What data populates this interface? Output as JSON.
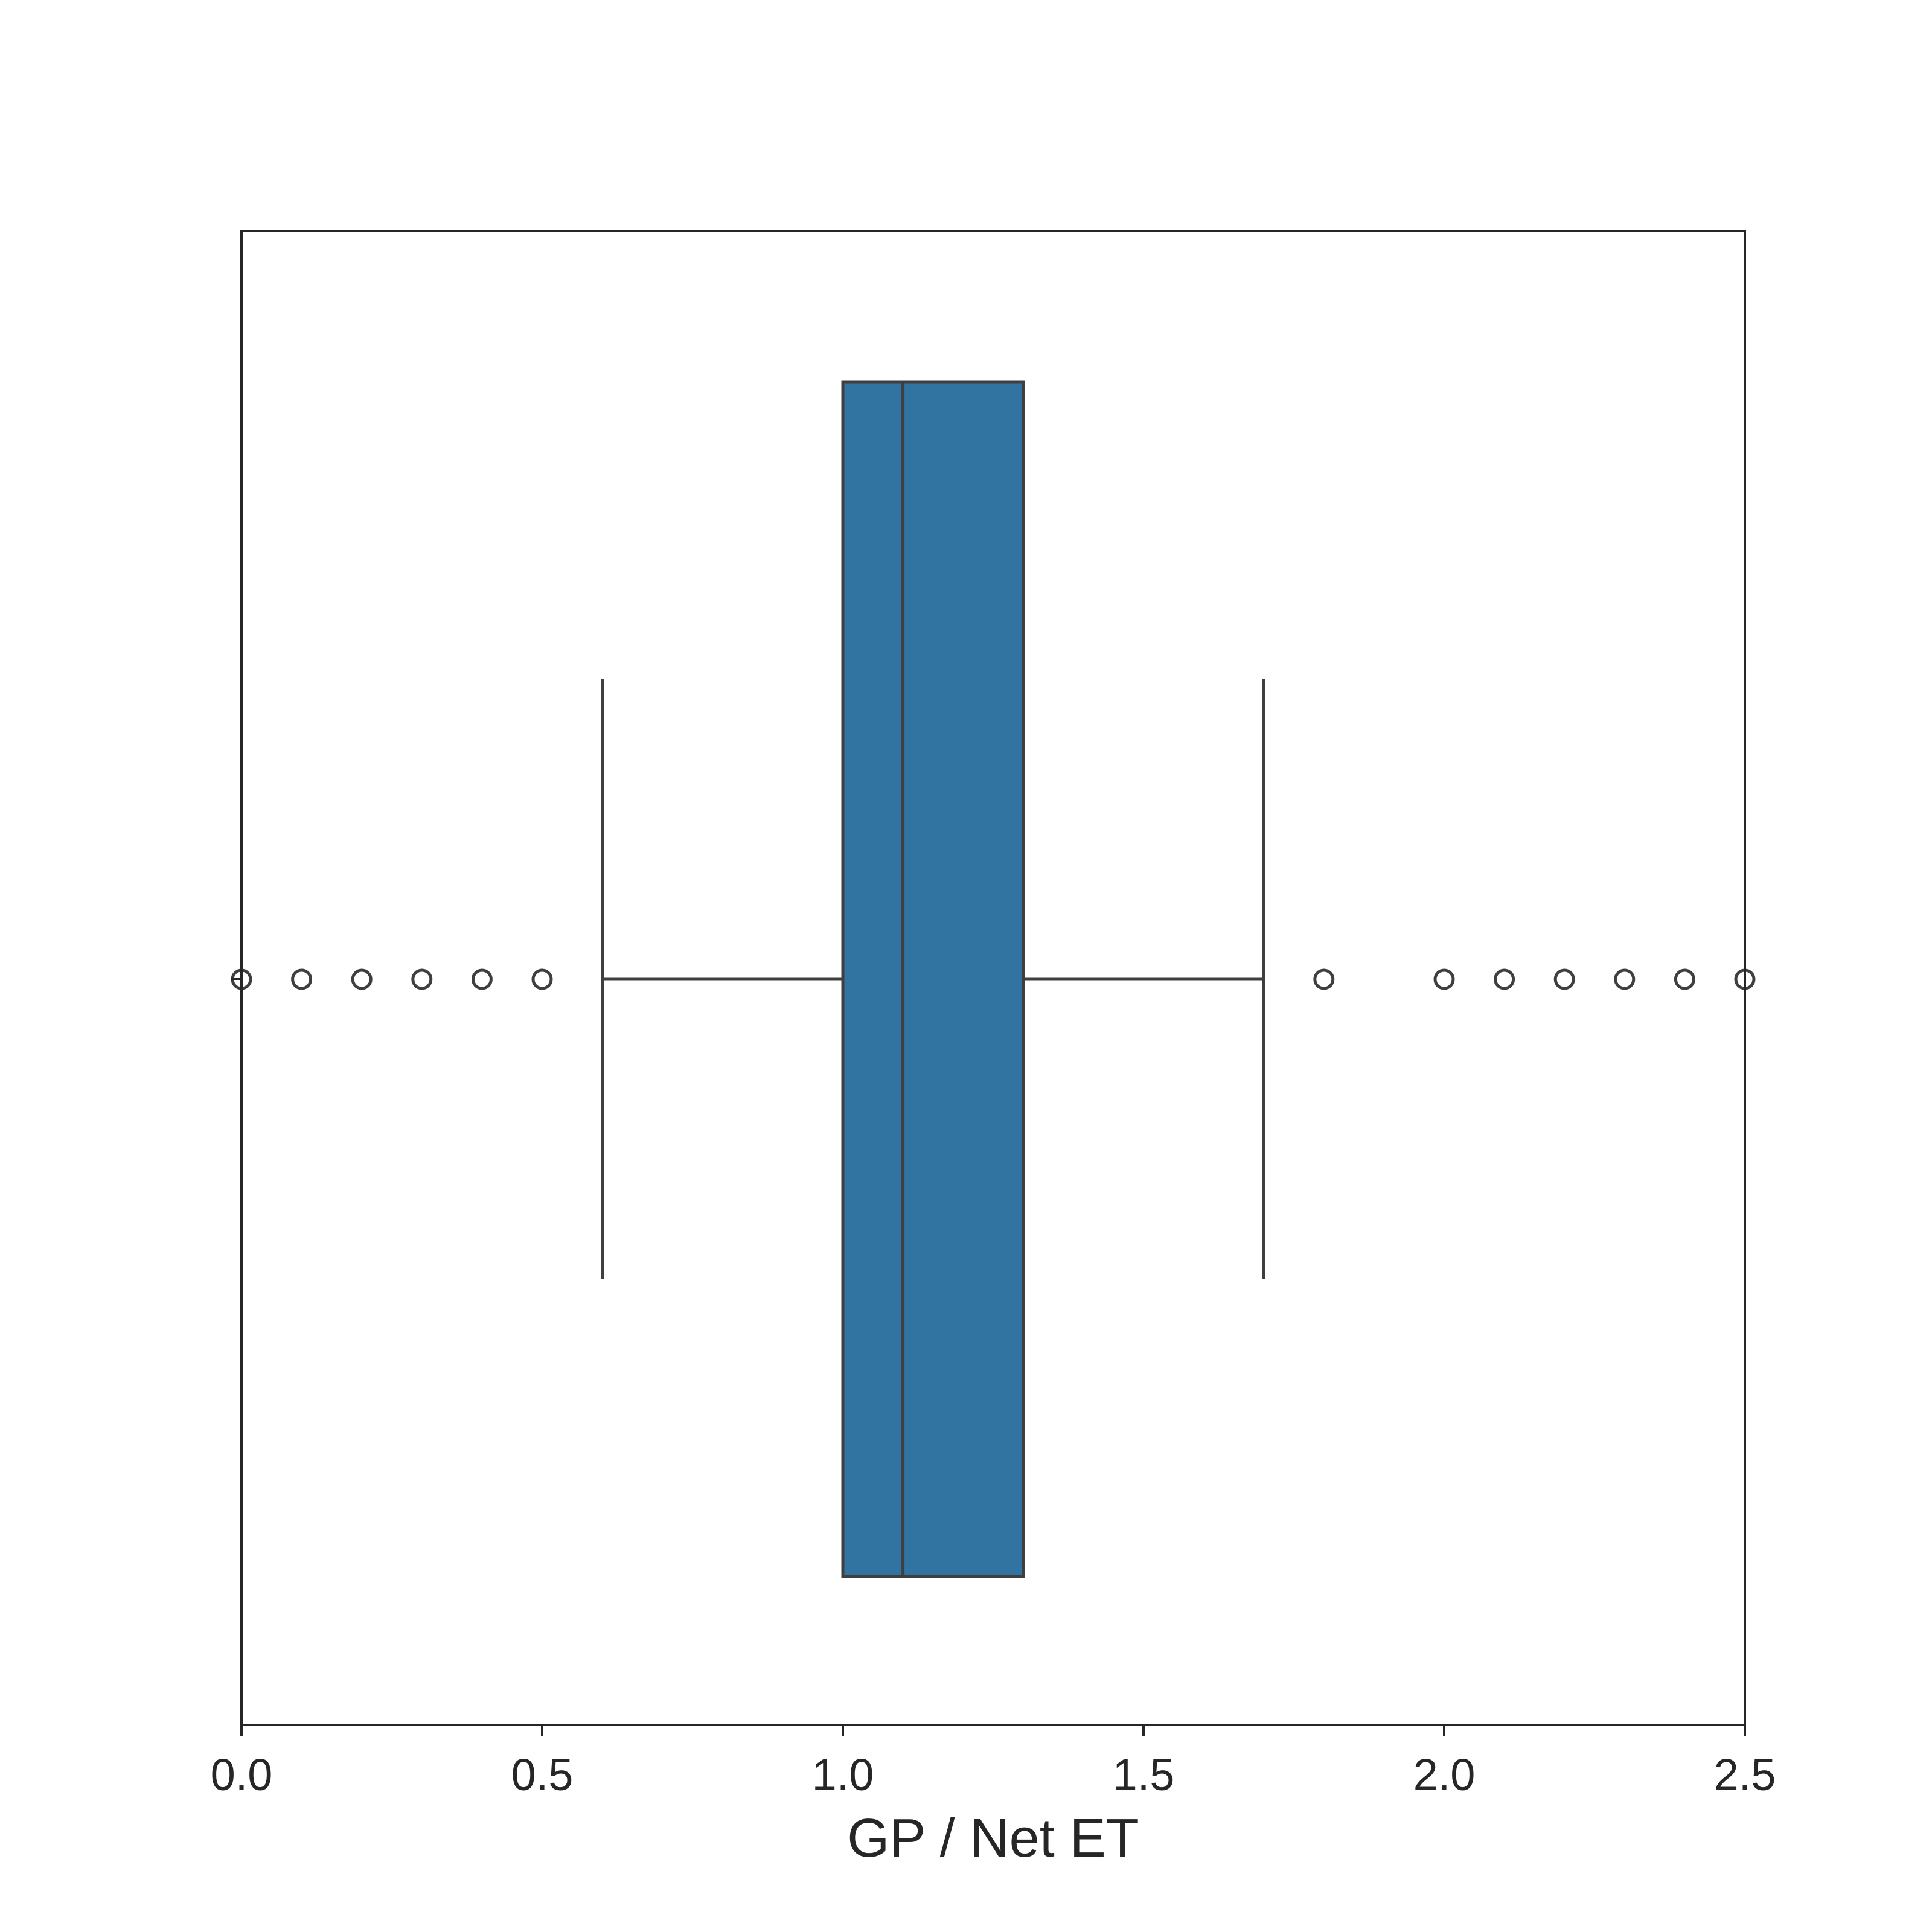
{
  "chart_data": {
    "type": "box",
    "orientation": "horizontal",
    "xlabel": "GP / Net ET",
    "xlim": [
      0.0,
      2.5
    ],
    "xticks": [
      0.0,
      0.5,
      1.0,
      1.5,
      2.0,
      2.5
    ],
    "xtick_labels": [
      "0.0",
      "0.5",
      "1.0",
      "1.5",
      "2.0",
      "2.5"
    ],
    "box": {
      "q1": 1.0,
      "median": 1.1,
      "q3": 1.3,
      "whisker_low": 0.6,
      "whisker_high": 1.7
    },
    "outliers": [
      0.0,
      0.1,
      0.2,
      0.3,
      0.4,
      0.5,
      1.8,
      2.0,
      2.1,
      2.2,
      2.3,
      2.4,
      2.5
    ],
    "colors": {
      "box_fill": "#3274a1",
      "line": "#3f3f3f",
      "axes": "#262626",
      "text": "#262626"
    }
  }
}
